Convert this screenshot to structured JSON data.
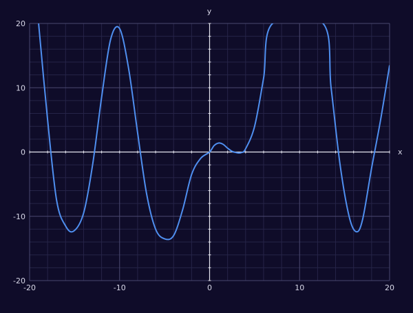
{
  "chart_data": {
    "type": "line",
    "title": "",
    "xlabel": "x",
    "ylabel": "y",
    "xlim": [
      -20,
      20
    ],
    "ylim": [
      -20,
      20
    ],
    "x_ticks": [
      "-20",
      "-10",
      "0",
      "10",
      "20"
    ],
    "y_ticks": [
      "20",
      "10",
      "0",
      "-10",
      "-20"
    ],
    "grid": true,
    "series": [
      {
        "name": "",
        "color": "#4f8ff0",
        "x": [
          -19.0,
          -18.0,
          -17.0,
          -16.0,
          -15.1,
          -14.0,
          -13.0,
          -12.0,
          -11.0,
          -10.0,
          -9.0,
          -8.0,
          -7.0,
          -6.0,
          -5.0,
          -4.0,
          -3.0,
          -2.0,
          -1.0,
          0.0,
          0.5,
          1.0,
          1.5,
          2.0,
          2.5,
          3.0,
          3.5,
          4.0,
          5.0,
          6.0,
          7.0,
          12.6,
          13.5,
          14.5,
          15.5,
          16.3,
          17.0,
          18.0,
          19.0,
          20.0
        ],
        "y": [
          20.0,
          5.0,
          -7.5,
          -11.5,
          -12.3,
          -9.5,
          -2.0,
          8.5,
          17.5,
          19.2,
          13.0,
          3.0,
          -6.5,
          -12.0,
          -13.5,
          -13.0,
          -9.0,
          -3.5,
          -1.0,
          0.0,
          1.0,
          1.4,
          1.2,
          0.6,
          0.1,
          -0.1,
          -0.1,
          0.5,
          4.0,
          11.5,
          20.0,
          20.0,
          10.0,
          -2.0,
          -10.0,
          -12.4,
          -10.5,
          -2.5,
          5.0,
          13.5
        ]
      }
    ]
  }
}
